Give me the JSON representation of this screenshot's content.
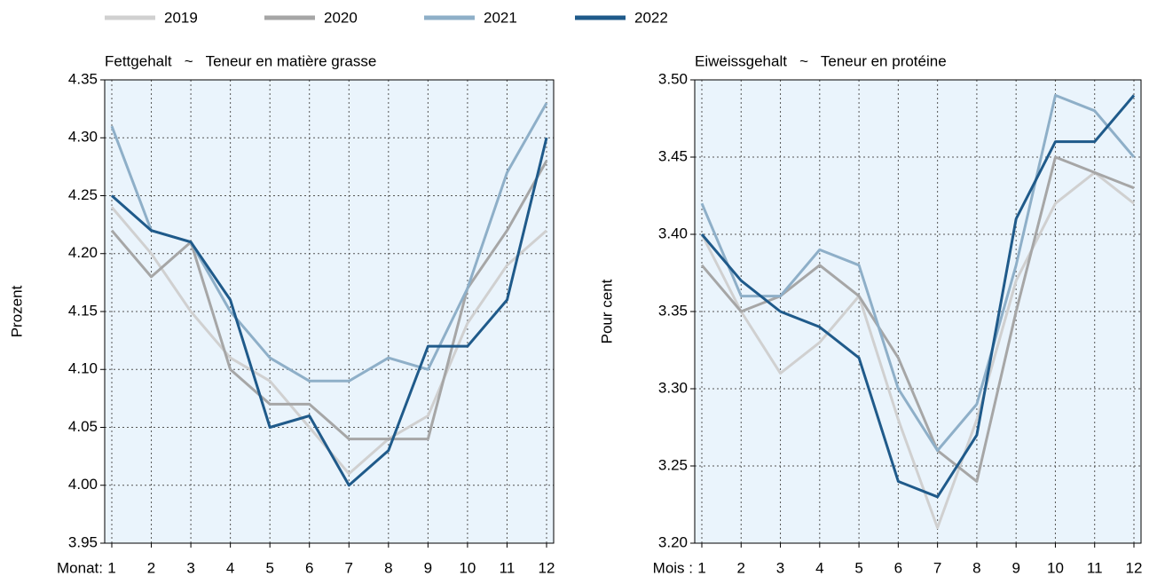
{
  "legend_position": "top-left",
  "chart_data": [
    {
      "type": "line",
      "title": "Fettgehalt   ~   Teneur en matière grasse",
      "xlabel": "Monat:",
      "ylabel": "Prozent",
      "categories": [
        "1",
        "2",
        "3",
        "4",
        "5",
        "6",
        "7",
        "8",
        "9",
        "10",
        "11",
        "12"
      ],
      "ylim": [
        3.95,
        4.35
      ],
      "yticks": [
        {
          "value": 3.95,
          "label": "3.95"
        },
        {
          "value": 4.0,
          "label": "4.00"
        },
        4.05,
        {
          "value": 4.1,
          "label": "4.10"
        },
        4.15,
        {
          "value": 4.2,
          "label": "4.20"
        },
        4.25,
        {
          "value": 4.3,
          "label": "4.30"
        },
        4.35
      ],
      "grid": true,
      "series": [
        {
          "name": "2019",
          "color": "#d0d0d0",
          "values": [
            4.24,
            4.2,
            4.15,
            4.11,
            4.09,
            4.05,
            4.01,
            4.04,
            4.06,
            4.14,
            4.19,
            4.22
          ]
        },
        {
          "name": "2020",
          "color": "#a6a6a6",
          "values": [
            4.22,
            4.18,
            4.21,
            4.1,
            4.07,
            4.07,
            4.04,
            4.04,
            4.04,
            4.17,
            4.22,
            4.28
          ]
        },
        {
          "name": "2021",
          "color": "#8eafc8",
          "values": [
            4.31,
            4.22,
            4.21,
            4.15,
            4.11,
            4.09,
            4.09,
            4.11,
            4.1,
            4.17,
            4.27,
            4.33
          ]
        },
        {
          "name": "2022",
          "color": "#1f5a8a",
          "values": [
            4.25,
            4.22,
            4.21,
            4.16,
            4.05,
            4.06,
            4.0,
            4.03,
            4.12,
            4.12,
            4.16,
            4.3
          ]
        }
      ]
    },
    {
      "type": "line",
      "title": "Eiweissgehalt   ~   Teneur en protéine",
      "xlabel": "Mois :",
      "ylabel": "Pour cent",
      "categories": [
        "1",
        "2",
        "3",
        "4",
        "5",
        "6",
        "7",
        "8",
        "9",
        "10",
        "11",
        "12"
      ],
      "ylim": [
        3.2,
        3.5
      ],
      "yticks": [
        {
          "value": 3.2,
          "label": "3.20"
        },
        3.25,
        {
          "value": 3.3,
          "label": "3.30"
        },
        3.35,
        {
          "value": 3.4,
          "label": "3.40"
        },
        3.45,
        {
          "value": 3.5,
          "label": "3.50"
        }
      ],
      "grid": true,
      "series": [
        {
          "name": "2019",
          "color": "#d0d0d0",
          "values": [
            3.4,
            3.35,
            3.31,
            3.33,
            3.36,
            3.28,
            3.21,
            3.28,
            3.37,
            3.42,
            3.44,
            3.42
          ]
        },
        {
          "name": "2020",
          "color": "#a6a6a6",
          "values": [
            3.38,
            3.35,
            3.36,
            3.38,
            3.36,
            3.32,
            3.26,
            3.24,
            3.35,
            3.45,
            3.44,
            3.43
          ]
        },
        {
          "name": "2021",
          "color": "#8eafc8",
          "values": [
            3.42,
            3.36,
            3.36,
            3.39,
            3.38,
            3.3,
            3.26,
            3.29,
            3.38,
            3.49,
            3.48,
            3.45
          ]
        },
        {
          "name": "2022",
          "color": "#1f5a8a",
          "values": [
            3.4,
            3.37,
            3.35,
            3.34,
            3.32,
            3.24,
            3.23,
            3.27,
            3.41,
            3.46,
            3.46,
            3.49
          ]
        }
      ]
    }
  ]
}
